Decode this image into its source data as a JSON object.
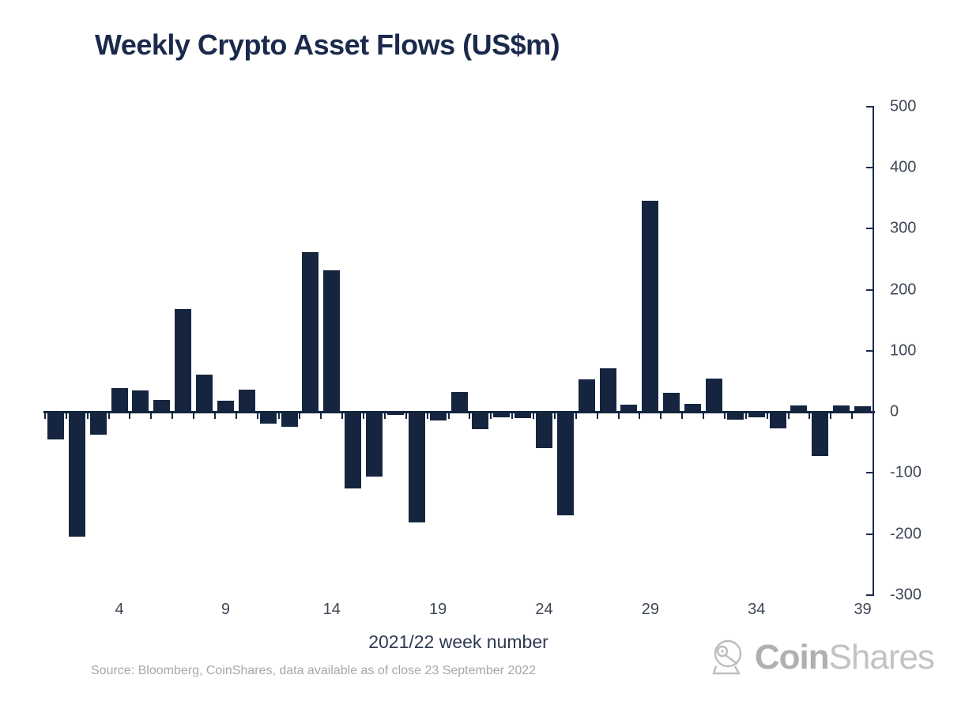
{
  "title": "Weekly Crypto Asset Flows (US$m)",
  "source_note": "Source: Bloomberg, CoinShares, data available as of close 23 September 2022",
  "logo": {
    "coin": "Coin",
    "shares": "Shares"
  },
  "colors": {
    "bar": "#16253F",
    "title": "#1B2A4C",
    "axis": "#1B2A4C",
    "tick_label": "#3E4756",
    "source_text": "#A7A7A7",
    "logo_gray": "#BDBDBD",
    "background": "#FFFFFF"
  },
  "chart_data": {
    "type": "bar",
    "title": "Weekly Crypto Asset Flows (US$m)",
    "xlabel": "2021/22 week number",
    "ylabel": "",
    "x": [
      1,
      2,
      3,
      4,
      5,
      6,
      7,
      8,
      9,
      10,
      11,
      12,
      13,
      14,
      15,
      16,
      17,
      18,
      19,
      20,
      21,
      22,
      23,
      24,
      25,
      26,
      27,
      28,
      29,
      30,
      31,
      32,
      33,
      34,
      35,
      36,
      37,
      38,
      39
    ],
    "values": [
      -45,
      -205,
      -38,
      39,
      35,
      19,
      168,
      61,
      18,
      36,
      -19,
      -24,
      262,
      232,
      -126,
      -106,
      -5,
      -181,
      -14,
      32,
      -28,
      -9,
      -11,
      -60,
      -170,
      53,
      71,
      12,
      346,
      31,
      13,
      54,
      -13,
      -9,
      -27,
      10,
      -72,
      11,
      9
    ],
    "x_tick_labels": [
      4,
      9,
      14,
      19,
      24,
      29,
      34,
      39
    ],
    "y_ticks": [
      500,
      400,
      300,
      200,
      100,
      0,
      -100,
      -200,
      -300
    ],
    "ylim": [
      -300,
      500
    ],
    "y_axis_side": "right",
    "grid": false,
    "legend": null,
    "bar_color": "#16253F"
  }
}
